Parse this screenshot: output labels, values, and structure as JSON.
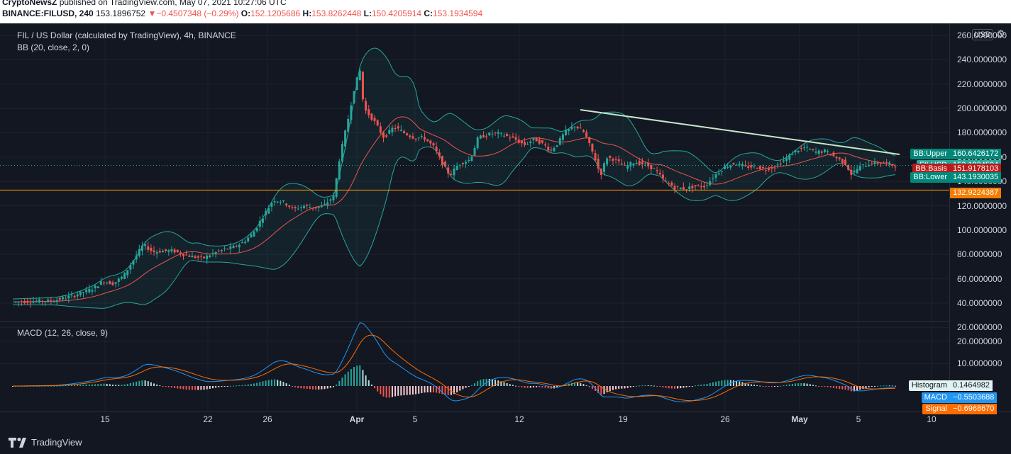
{
  "header": {
    "publisher": "CryptoNewsZ",
    "published_on": "published on TradingView.com, May 07, 2021 10:27:06 UTC",
    "symbol_interval": "BINANCE:FILUSD, 240",
    "last": "153.1896752",
    "arrow": "▼",
    "change": "−0.4507348 (−0.29%)",
    "o_label": "O:",
    "o_value": "152.1205686",
    "h_label": "H:",
    "h_value": "153.8262448",
    "l_label": "L:",
    "l_value": "150.4205914",
    "c_label": "C:",
    "c_value": "153.1934594"
  },
  "chart": {
    "title": "FIL / US Dollar (calculated by TradingView), 4h, BINANCE",
    "bb_legend": "BB (20, close, 2, 0)",
    "macd_legend": "MACD (12, 26, close, 9)",
    "currency_button": "USD",
    "settings_icon": "gear-icon",
    "price_axis": [
      "260.0000000",
      "240.0000000",
      "220.0000000",
      "200.0000000",
      "180.0000000",
      "160.0000000",
      "140.0000000",
      "120.0000000",
      "100.0000000",
      "80.0000000",
      "60.0000000",
      "40.0000000",
      "20.0000000"
    ],
    "macd_axis": [
      "20.0000000",
      "10.0000000"
    ],
    "time_axis": [
      "15",
      "22",
      "26",
      "Apr",
      "5",
      "12",
      "19",
      "26",
      "May",
      "5",
      "10"
    ],
    "price_tags": [
      {
        "name": "BB:Upper",
        "value": "160.6426172",
        "color": "#00897b"
      },
      {
        "name": "FILUSD",
        "value": "153.1934594",
        "color": "#26a69a"
      },
      {
        "name": "BB:Basis",
        "value": "151.9178103",
        "color": "#b71c1c"
      },
      {
        "name": "BB:Lower",
        "value": "143.1930035",
        "color": "#00897b"
      },
      {
        "name": "",
        "value": "132.9224387",
        "color": "#f57c00"
      }
    ],
    "macd_tags": [
      {
        "name": "Histogram",
        "value": "0.1464982",
        "color": "#e0f2f1"
      },
      {
        "name": "MACD",
        "value": "−0.5503688",
        "color": "#2196f3"
      },
      {
        "name": "Signal",
        "value": "−0.6968670",
        "color": "#ff6d00"
      }
    ],
    "colors": {
      "up": "#26a69a",
      "down": "#ef5350",
      "bb": "#26a69a",
      "basis": "#ef5350",
      "trendline": "#c8e6c9",
      "support": "#ff9800"
    }
  },
  "footer": {
    "brand": "TradingView"
  }
}
